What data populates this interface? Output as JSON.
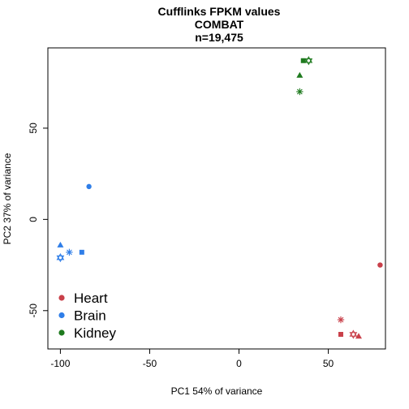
{
  "chart_data": {
    "type": "scatter",
    "title_lines": [
      "Cufflinks FPKM values",
      "COMBAT",
      "n=19,475"
    ],
    "xlabel": "PC1 54% of variance",
    "ylabel": "PC2 37% of variance",
    "xlim": [
      -107,
      82
    ],
    "ylim": [
      -71,
      94
    ],
    "xticks": [
      -100,
      -50,
      0,
      50
    ],
    "yticks": [
      -50,
      0,
      50
    ],
    "grid": false,
    "legend_position": "bottom-left",
    "series": [
      {
        "name": "Heart",
        "color": "#c9404a",
        "points": [
          {
            "x": 79,
            "y": -25,
            "shape": "circle"
          },
          {
            "x": 57,
            "y": -55,
            "shape": "asterisk"
          },
          {
            "x": 57,
            "y": -63,
            "shape": "square"
          },
          {
            "x": 64,
            "y": -63,
            "shape": "star-of-david"
          },
          {
            "x": 67,
            "y": -64,
            "shape": "triangle"
          }
        ]
      },
      {
        "name": "Brain",
        "color": "#2f7ee8",
        "points": [
          {
            "x": -84,
            "y": 18,
            "shape": "circle"
          },
          {
            "x": -100,
            "y": -14,
            "shape": "triangle"
          },
          {
            "x": -95,
            "y": -18,
            "shape": "asterisk"
          },
          {
            "x": -88,
            "y": -18,
            "shape": "square"
          },
          {
            "x": -100,
            "y": -21,
            "shape": "star-of-david"
          }
        ]
      },
      {
        "name": "Kidney",
        "color": "#1e7a1e",
        "points": [
          {
            "x": 36,
            "y": 87,
            "shape": "square"
          },
          {
            "x": 39,
            "y": 87,
            "shape": "star-of-david"
          },
          {
            "x": 34,
            "y": 79,
            "shape": "triangle"
          },
          {
            "x": 34,
            "y": 70,
            "shape": "asterisk"
          }
        ]
      }
    ]
  }
}
